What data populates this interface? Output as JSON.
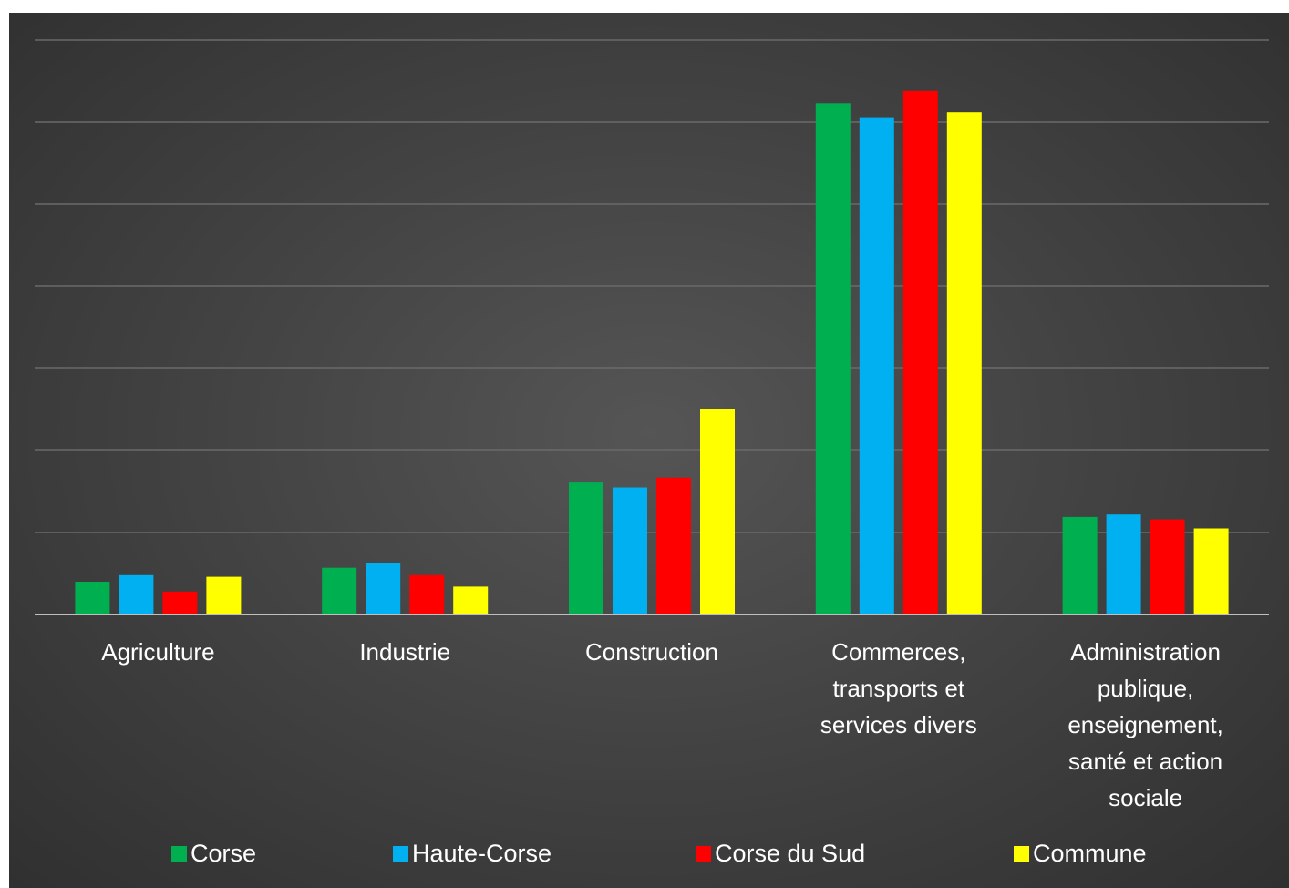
{
  "chart_data": {
    "type": "bar",
    "title": "",
    "xlabel": "",
    "ylabel": "",
    "ylim": [
      0,
      70
    ],
    "grid": true,
    "legend_position": "bottom",
    "categories": [
      [
        "Agriculture"
      ],
      [
        "Industrie"
      ],
      [
        "Construction"
      ],
      [
        "Commerces,",
        "transports et",
        "services divers"
      ],
      [
        "Administration",
        "publique,",
        "enseignement,",
        "santé et action",
        "sociale"
      ]
    ],
    "series": [
      {
        "name": "Corse",
        "color": "#00B050",
        "values": [
          4.0,
          5.7,
          16.1,
          62.3,
          11.9
        ]
      },
      {
        "name": "Haute-Corse",
        "color": "#00B0F0",
        "values": [
          4.8,
          6.3,
          15.5,
          60.6,
          12.2
        ]
      },
      {
        "name": "Corse du Sud",
        "color": "#FF0000",
        "values": [
          2.8,
          4.8,
          16.7,
          63.8,
          11.6
        ]
      },
      {
        "name": "Commune",
        "color": "#FFFF00",
        "values": [
          4.6,
          3.4,
          25.0,
          61.2,
          10.5
        ]
      }
    ]
  },
  "legend": [
    {
      "label": "Corse",
      "color": "#00B050"
    },
    {
      "label": "Haute-Corse",
      "color": "#00B0F0"
    },
    {
      "label": "Corse du Sud",
      "color": "#FF0000"
    },
    {
      "label": "Commune",
      "color": "#FFFF00"
    }
  ]
}
